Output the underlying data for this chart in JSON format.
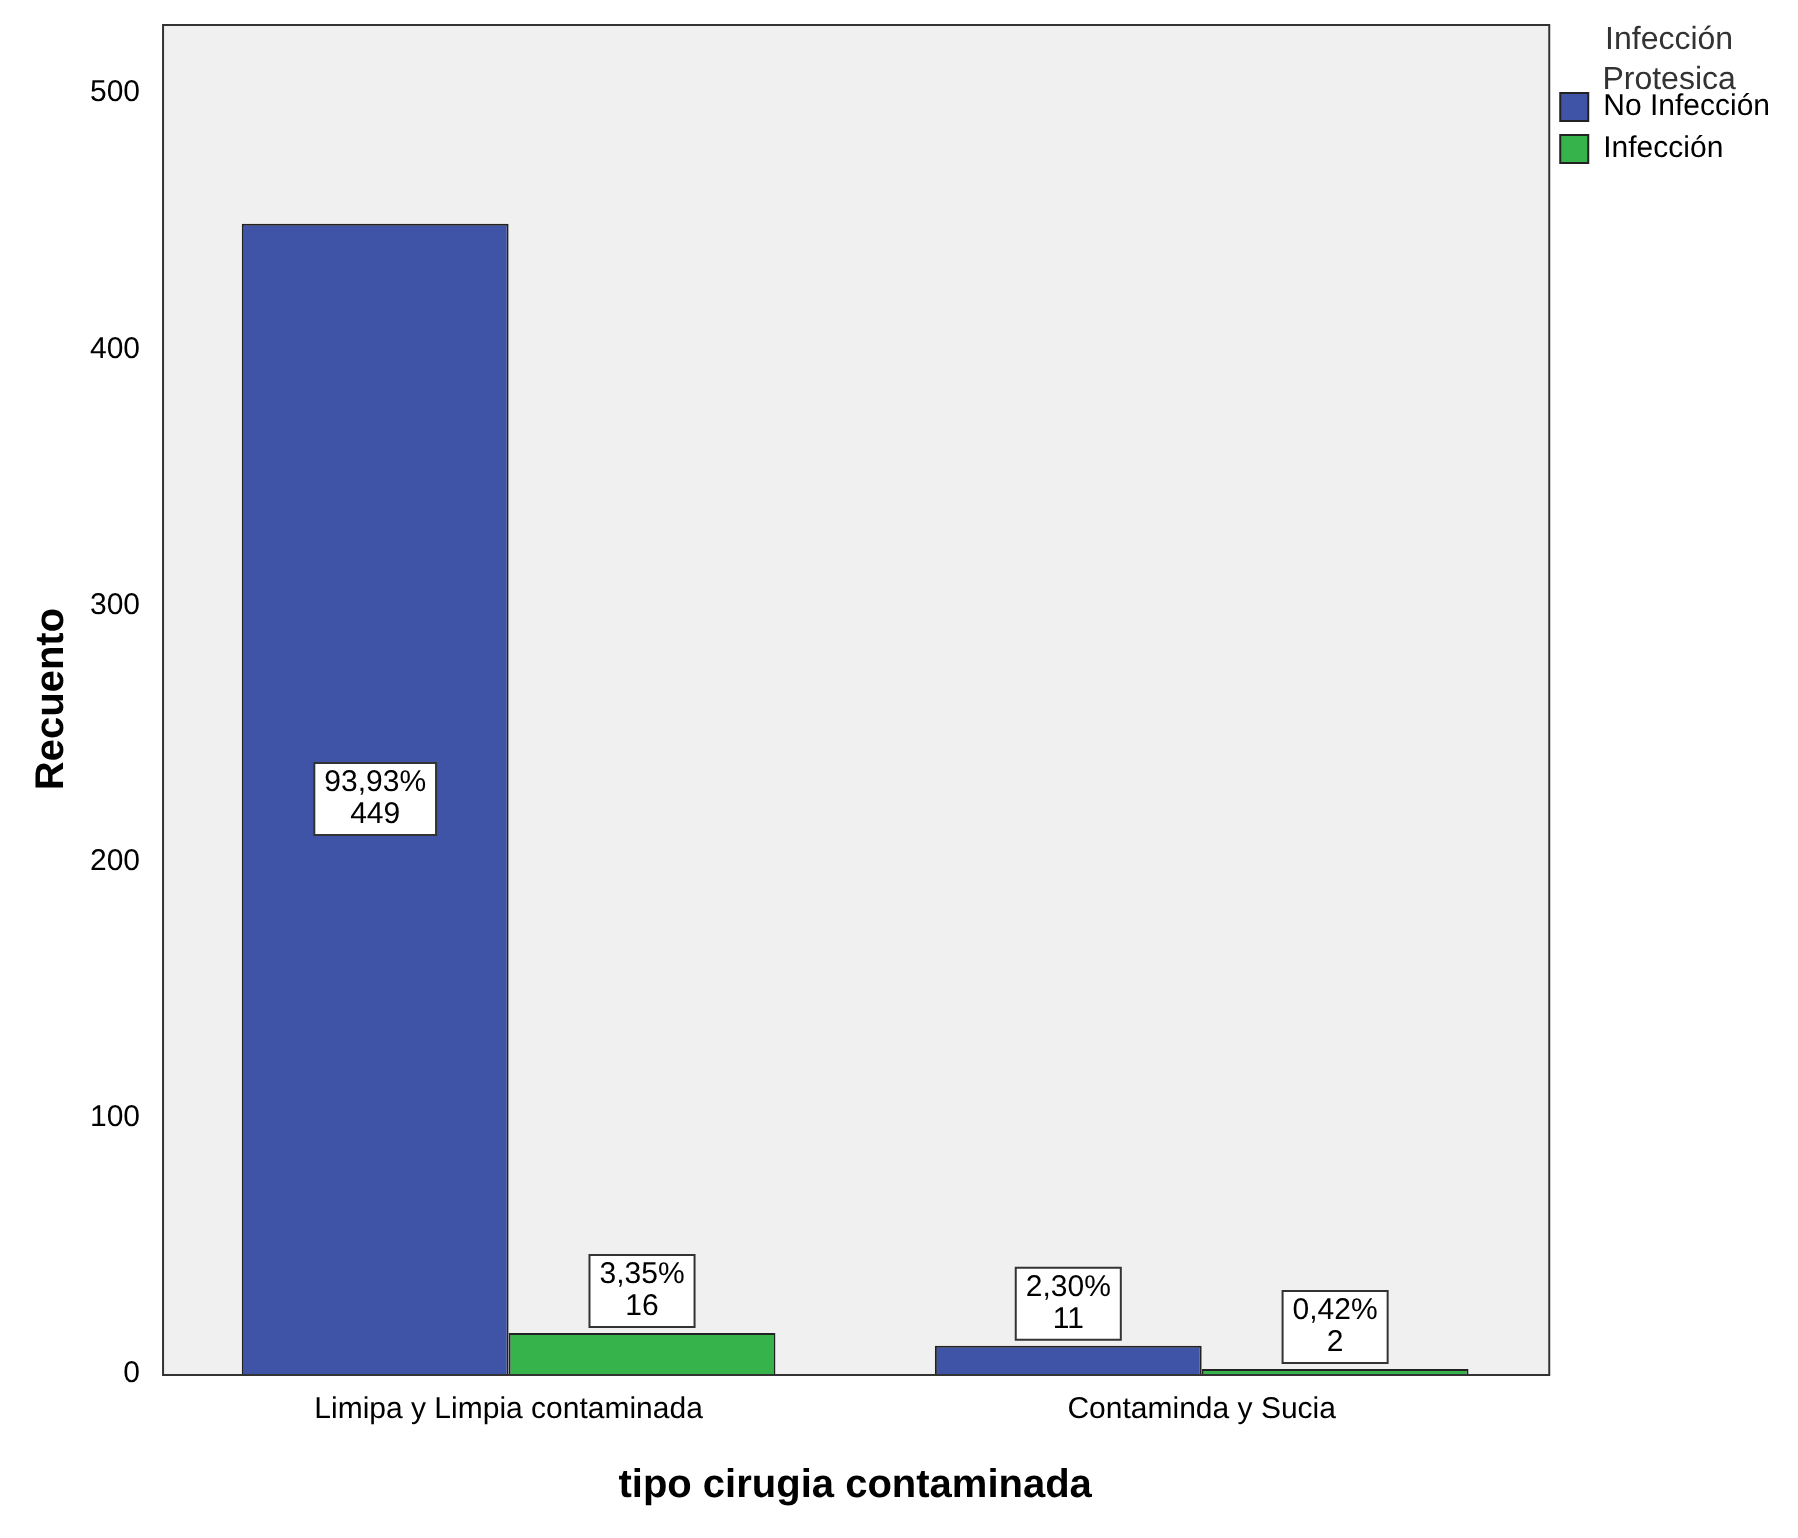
{
  "chart_data": {
    "type": "bar",
    "xlabel": "tipo cirugia contaminada",
    "ylabel": "Recuento",
    "legend_title": "Infección Protesica",
    "categories": [
      "Limipa y Limpia contaminada",
      "Contaminda y Sucia"
    ],
    "series": [
      {
        "name": "No Infección",
        "color": "#3f53a7",
        "values": [
          449,
          11
        ],
        "value_labels": [
          "93,93%\n449",
          "2,30%\n11"
        ]
      },
      {
        "name": "Infección",
        "color": "#36b34a",
        "values": [
          16,
          2
        ],
        "value_labels": [
          "3,35%\n16",
          "0,42%\n2"
        ]
      }
    ],
    "ylim": [
      0,
      527
    ],
    "yticks": [
      0,
      100,
      200,
      300,
      400,
      500
    ],
    "grid": false,
    "legend": "top right"
  }
}
